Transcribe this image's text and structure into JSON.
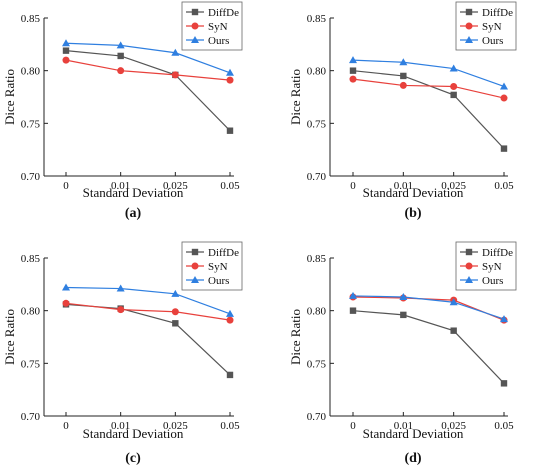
{
  "colors": {
    "DiffDe": "#555555",
    "SyN": "#e8413c",
    "Ours": "#2f7fe0"
  },
  "markers": {
    "DiffDe": "square",
    "SyN": "circle",
    "Ours": "triangle"
  },
  "chart_data": [
    {
      "type": "line",
      "panel_label": "(a)",
      "xlabel": "Standard Deviation",
      "ylabel": "Dice Ratio",
      "x": [
        "0",
        "0.01",
        "0.025",
        "0.05"
      ],
      "ylim": [
        0.7,
        0.85
      ],
      "yticks": [
        "0.70",
        "0.75",
        "0.80",
        "0.85"
      ],
      "legend_position": "top-right",
      "grid": false,
      "series": [
        {
          "name": "DiffDe",
          "values": [
            0.819,
            0.814,
            0.796,
            0.743
          ]
        },
        {
          "name": "SyN",
          "values": [
            0.81,
            0.8,
            0.796,
            0.791
          ]
        },
        {
          "name": "Ours",
          "values": [
            0.826,
            0.824,
            0.817,
            0.798
          ]
        }
      ]
    },
    {
      "type": "line",
      "panel_label": "(b)",
      "xlabel": "Standard Deviation",
      "ylabel": "Dice Ratio",
      "x": [
        "0",
        "0.01",
        "0.025",
        "0.05"
      ],
      "ylim": [
        0.7,
        0.85
      ],
      "yticks": [
        "0.70",
        "0.75",
        "0.80",
        "0.85"
      ],
      "legend_position": "top-right",
      "grid": false,
      "series": [
        {
          "name": "DiffDe",
          "values": [
            0.8,
            0.795,
            0.777,
            0.726
          ]
        },
        {
          "name": "SyN",
          "values": [
            0.792,
            0.786,
            0.785,
            0.774
          ]
        },
        {
          "name": "Ours",
          "values": [
            0.81,
            0.808,
            0.802,
            0.785
          ]
        }
      ]
    },
    {
      "type": "line",
      "panel_label": "(c)",
      "xlabel": "Standard Deviation",
      "ylabel": "Dice Ratio",
      "x": [
        "0",
        "0.01",
        "0.025",
        "0.05"
      ],
      "ylim": [
        0.7,
        0.85
      ],
      "yticks": [
        "0.70",
        "0.75",
        "0.80",
        "0.85"
      ],
      "legend_position": "top-right",
      "grid": false,
      "series": [
        {
          "name": "DiffDe",
          "values": [
            0.806,
            0.802,
            0.788,
            0.739
          ]
        },
        {
          "name": "SyN",
          "values": [
            0.807,
            0.801,
            0.799,
            0.791
          ]
        },
        {
          "name": "Ours",
          "values": [
            0.822,
            0.821,
            0.816,
            0.797
          ]
        }
      ]
    },
    {
      "type": "line",
      "panel_label": "(d)",
      "xlabel": "Standard Deviation",
      "ylabel": "Dice Ratio",
      "x": [
        "0",
        "0.01",
        "0.025",
        "0.05"
      ],
      "ylim": [
        0.7,
        0.85
      ],
      "yticks": [
        "0.70",
        "0.75",
        "0.80",
        "0.85"
      ],
      "legend_position": "top-right",
      "grid": false,
      "series": [
        {
          "name": "DiffDe",
          "values": [
            0.8,
            0.796,
            0.781,
            0.731
          ]
        },
        {
          "name": "SyN",
          "values": [
            0.813,
            0.812,
            0.81,
            0.791
          ]
        },
        {
          "name": "Ours",
          "values": [
            0.814,
            0.813,
            0.808,
            0.792
          ]
        }
      ]
    }
  ]
}
